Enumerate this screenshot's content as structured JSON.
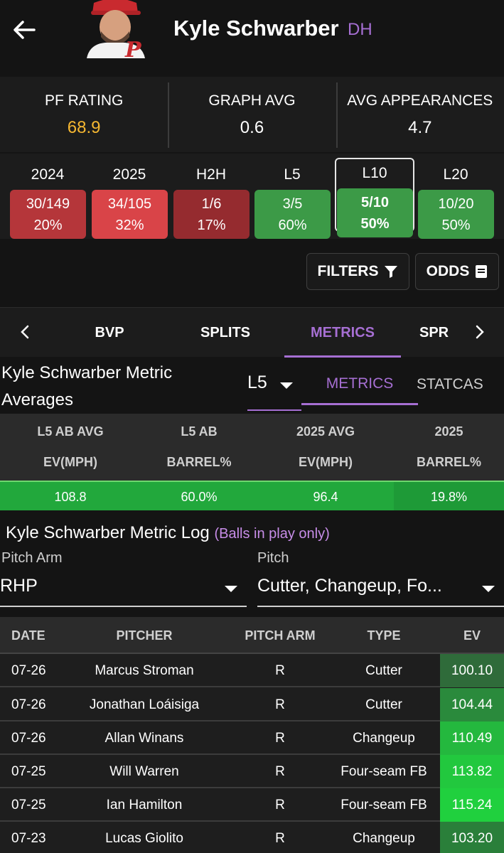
{
  "header": {
    "player_name": "Kyle Schwarber",
    "position": "DH"
  },
  "ratings": [
    {
      "label": "PF RATING",
      "value": "68.9",
      "color": "#f5b731"
    },
    {
      "label": "GRAPH AVG",
      "value": "0.6",
      "color": "#ffffff"
    },
    {
      "label": "AVG APPEARANCES",
      "value": "4.7",
      "color": "#ffffff"
    }
  ],
  "splits": [
    {
      "label": "2024",
      "ratio": "30/149",
      "pct": "20%",
      "color": "#b5363a"
    },
    {
      "label": "2025",
      "ratio": "34/105",
      "pct": "32%",
      "color": "#d94448"
    },
    {
      "label": "H2H",
      "ratio": "1/6",
      "pct": "17%",
      "color": "#952b2f"
    },
    {
      "label": "L5",
      "ratio": "3/5",
      "pct": "60%",
      "color": "#3c9a47"
    },
    {
      "label": "L10",
      "ratio": "5/10",
      "pct": "50%",
      "color": "#3c9a47",
      "active": true
    },
    {
      "label": "L20",
      "ratio": "10/20",
      "pct": "50%",
      "color": "#3c9a47"
    }
  ],
  "buttons": {
    "filters": "FILTERS",
    "odds": "ODDS"
  },
  "tabs": [
    "BVP",
    "SPLITS",
    "METRICS",
    "SPR"
  ],
  "active_tab": "METRICS",
  "metric_averages": {
    "title_line1": "Kyle Schwarber Metric",
    "title_line2": "Averages",
    "selected_range": "L5",
    "subtabs": [
      "METRICS",
      "STATCAS"
    ],
    "columns": [
      {
        "line1": "L5 AB AVG",
        "line2": "EV(MPH)",
        "value": "108.8",
        "color": "#22a83c"
      },
      {
        "line1": "L5 AB",
        "line2": "BARREL%",
        "value": "60.0%",
        "color": "#22a83c"
      },
      {
        "line1": "2025 AVG",
        "line2": "EV(MPH)",
        "value": "96.4",
        "color": "#22a83c"
      },
      {
        "line1": "2025",
        "line2": "BARREL%",
        "value": "19.8%",
        "color": "#1e9a37"
      }
    ]
  },
  "metric_log": {
    "title": "Kyle Schwarber Metric Log",
    "subtitle": "(Balls in play only)",
    "pitch_arm_label": "Pitch Arm",
    "pitch_arm_value": "RHP",
    "pitch_label": "Pitch",
    "pitch_value": "Cutter, Changeup, Fo...",
    "headers": [
      "DATE",
      "PITCHER",
      "PITCH ARM",
      "TYPE",
      "EV"
    ],
    "rows": [
      {
        "date": "07-26",
        "pitcher": "Marcus Stroman",
        "arm": "R",
        "type": "Cutter",
        "ev": "100.10",
        "ev_color": "#2f6b3a"
      },
      {
        "date": "07-26",
        "pitcher": "Jonathan Loáisiga",
        "arm": "R",
        "type": "Cutter",
        "ev": "104.44",
        "ev_color": "#2a8a3c"
      },
      {
        "date": "07-26",
        "pitcher": "Allan Winans",
        "arm": "R",
        "type": "Changeup",
        "ev": "110.49",
        "ev_color": "#24b83e"
      },
      {
        "date": "07-25",
        "pitcher": "Will Warren",
        "arm": "R",
        "type": "Four-seam FB",
        "ev": "113.82",
        "ev_color": "#22c83e"
      },
      {
        "date": "07-25",
        "pitcher": "Ian Hamilton",
        "arm": "R",
        "type": "Four-seam FB",
        "ev": "115.24",
        "ev_color": "#20d03e"
      },
      {
        "date": "07-23",
        "pitcher": "Lucas Giolito",
        "arm": "R",
        "type": "Changeup",
        "ev": "103.20",
        "ev_color": "#2a7f3a"
      }
    ]
  }
}
